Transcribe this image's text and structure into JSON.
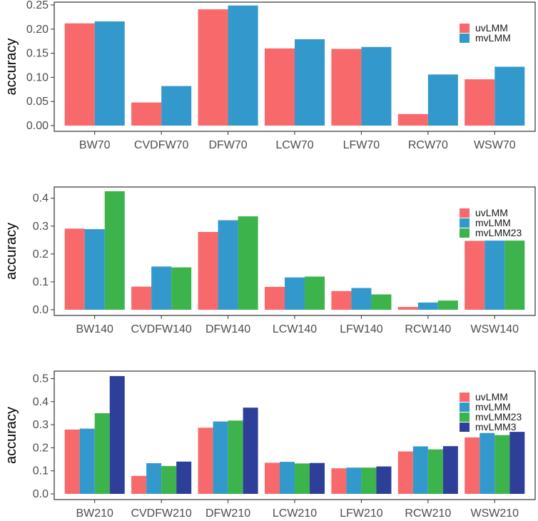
{
  "colors": {
    "uvLMM": "#f8696b",
    "mvLMM": "#3399cc",
    "mvLMM23": "#3cb44b",
    "mvLMM3": "#2e3f99"
  },
  "chart_data": [
    {
      "type": "bar",
      "title": "",
      "xlabel": "",
      "ylabel": "accuracy",
      "ylim": [
        0,
        0.25
      ],
      "yticks": [
        0.0,
        0.05,
        0.1,
        0.15,
        0.2,
        0.25
      ],
      "ytick_labels": [
        "0.00",
        "0.05",
        "0.10",
        "0.15",
        "0.20",
        "0.25"
      ],
      "legend_position": "top-right",
      "categories": [
        "BW70",
        "CVDFW70",
        "DFW70",
        "LCW70",
        "LFW70",
        "RCW70",
        "WSW70"
      ],
      "series": [
        {
          "name": "uvLMM",
          "values": [
            0.212,
            0.048,
            0.241,
            0.16,
            0.159,
            0.024,
            0.096
          ]
        },
        {
          "name": "mvLMM",
          "values": [
            0.216,
            0.082,
            0.249,
            0.179,
            0.163,
            0.106,
            0.122
          ]
        }
      ]
    },
    {
      "type": "bar",
      "title": "",
      "xlabel": "",
      "ylabel": "accuracy",
      "ylim": [
        0,
        0.43
      ],
      "yticks": [
        0.0,
        0.1,
        0.2,
        0.3,
        0.4
      ],
      "ytick_labels": [
        "0.0",
        "0.1",
        "0.2",
        "0.3",
        "0.4"
      ],
      "legend_position": "top-right",
      "categories": [
        "BW140",
        "CVDFW140",
        "DFW140",
        "LCW140",
        "LFW140",
        "RCW140",
        "WSW140"
      ],
      "series": [
        {
          "name": "uvLMM",
          "values": [
            0.291,
            0.083,
            0.279,
            0.082,
            0.067,
            0.01,
            0.247
          ]
        },
        {
          "name": "mvLMM",
          "values": [
            0.289,
            0.155,
            0.321,
            0.116,
            0.078,
            0.026,
            0.248
          ]
        },
        {
          "name": "mvLMM23",
          "values": [
            0.425,
            0.152,
            0.335,
            0.119,
            0.055,
            0.033,
            0.248
          ]
        }
      ]
    },
    {
      "type": "bar",
      "title": "",
      "xlabel": "",
      "ylabel": "accuracy",
      "ylim": [
        0,
        0.52
      ],
      "yticks": [
        0.0,
        0.1,
        0.2,
        0.3,
        0.4,
        0.5
      ],
      "ytick_labels": [
        "0.0",
        "0.1",
        "0.2",
        "0.3",
        "0.4",
        "0.5"
      ],
      "legend_position": "top-right",
      "categories": [
        "BW210",
        "CVDFW210",
        "DFW210",
        "LCW210",
        "LFW210",
        "RCW210",
        "WSW210"
      ],
      "series": [
        {
          "name": "uvLMM",
          "values": [
            0.279,
            0.078,
            0.287,
            0.135,
            0.111,
            0.184,
            0.245
          ]
        },
        {
          "name": "mvLMM",
          "values": [
            0.283,
            0.133,
            0.314,
            0.139,
            0.114,
            0.206,
            0.264
          ]
        },
        {
          "name": "mvLMM23",
          "values": [
            0.35,
            0.121,
            0.318,
            0.132,
            0.114,
            0.193,
            0.255
          ]
        },
        {
          "name": "mvLMM3",
          "values": [
            0.511,
            0.14,
            0.374,
            0.134,
            0.119,
            0.207,
            0.269
          ]
        }
      ]
    }
  ]
}
